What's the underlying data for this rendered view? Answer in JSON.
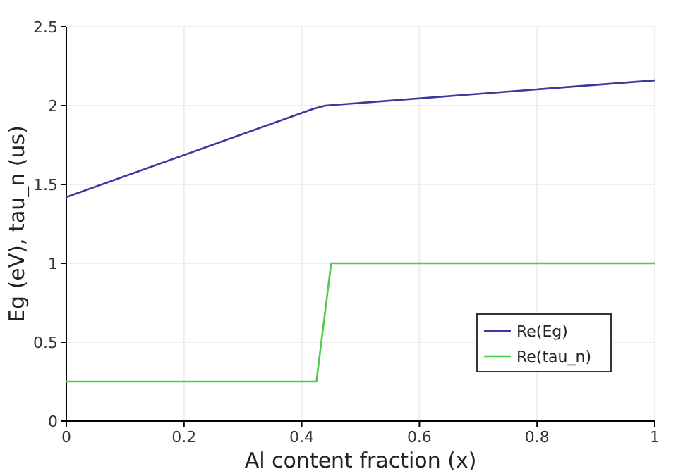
{
  "chart_data": {
    "type": "line",
    "xlabel": "Al content fraction (x)",
    "ylabel": "Eg (eV), tau_n (us)",
    "xlim": [
      0,
      1
    ],
    "ylim": [
      0,
      2.5
    ],
    "xticks": [
      0,
      0.2,
      0.4,
      0.6,
      0.8,
      1
    ],
    "yticks": [
      0,
      0.5,
      1,
      1.5,
      2,
      2.5
    ],
    "grid": true,
    "legend": "bottom right",
    "series": [
      {
        "name": "Re(Eg)",
        "color": "#3a3a9e",
        "x": [
          0,
          0.42,
          0.44,
          1
        ],
        "values": [
          1.42,
          1.98,
          2.0,
          2.16
        ]
      },
      {
        "name": "Re(tau_n)",
        "color": "#4ccd4c",
        "x": [
          0,
          0.425,
          0.45,
          1
        ],
        "values": [
          0.25,
          0.25,
          1,
          1
        ]
      }
    ]
  }
}
